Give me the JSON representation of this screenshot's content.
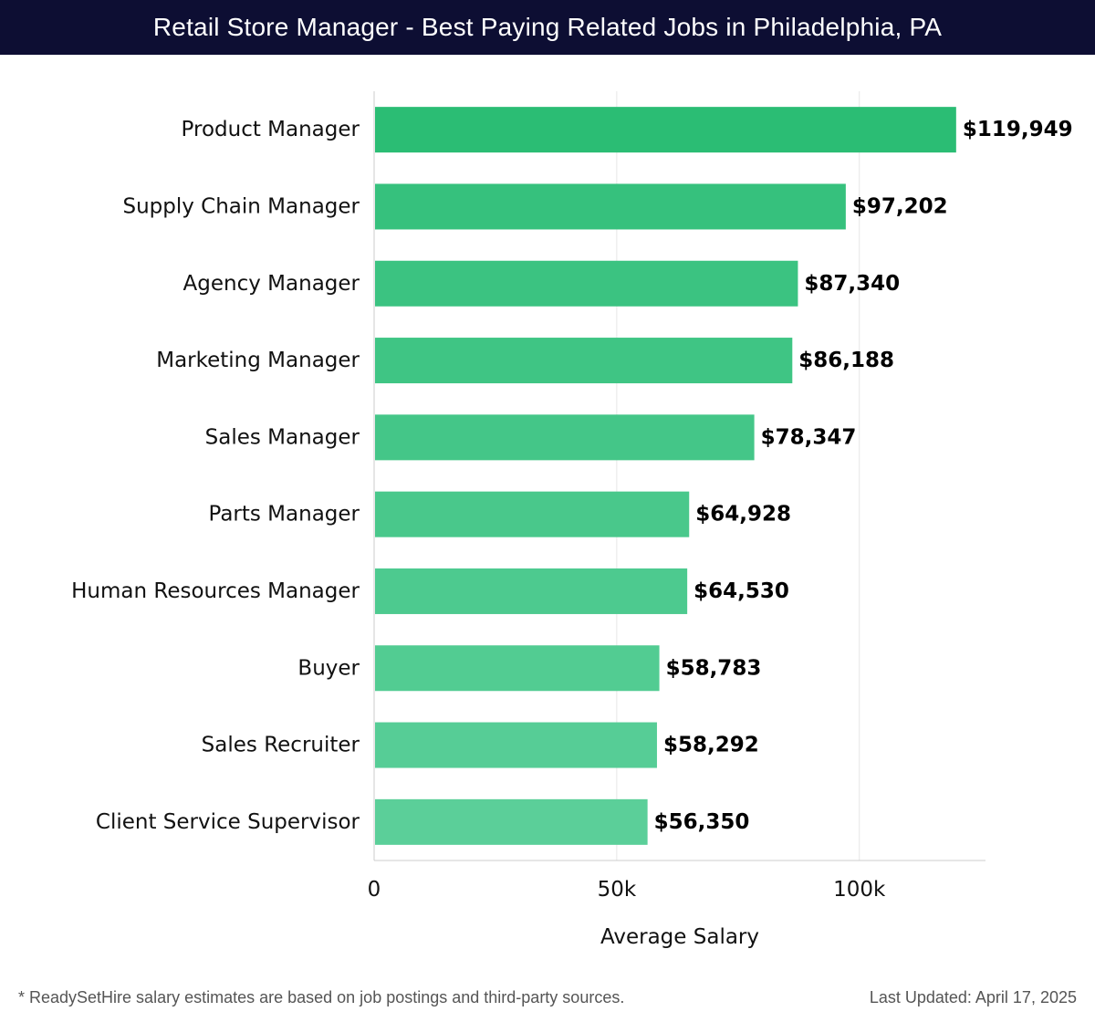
{
  "header": {
    "title": "Retail Store Manager - Best Paying Related Jobs in Philadelphia, PA"
  },
  "chart_data": {
    "type": "bar",
    "orientation": "horizontal",
    "title": "Retail Store Manager - Best Paying Related Jobs in Philadelphia, PA",
    "categories": [
      "Product Manager",
      "Supply Chain Manager",
      "Agency Manager",
      "Marketing Manager",
      "Sales Manager",
      "Parts Manager",
      "Human Resources Manager",
      "Buyer",
      "Sales Recruiter",
      "Client Service Supervisor"
    ],
    "values": [
      119949,
      97202,
      87340,
      86188,
      78347,
      64928,
      64530,
      58783,
      58292,
      56350
    ],
    "value_labels": [
      "$119,949",
      "$97,202",
      "$87,340",
      "$86,188",
      "$78,347",
      "$64,928",
      "$64,530",
      "$58,783",
      "$58,292",
      "$56,350"
    ],
    "xlabel": "Average Salary",
    "ylabel": "",
    "xlim": [
      0,
      126000
    ],
    "xticks": [
      0,
      50000,
      100000
    ],
    "xtick_labels": [
      "0",
      "50k",
      "100k"
    ],
    "grid": true,
    "colors": {
      "top_bar": "#2bbd74",
      "bar_start": "#36c17d",
      "bar_end": "#5bcf99",
      "grid": "#e6e6e6",
      "axis": "#cccccc"
    }
  },
  "footer": {
    "note": "* ReadySetHire salary estimates are based on job postings and third-party sources.",
    "updated": "Last Updated: April 17, 2025"
  }
}
